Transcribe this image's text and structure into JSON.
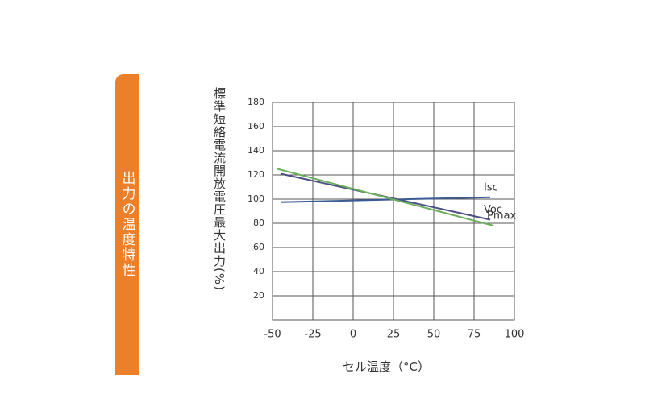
{
  "side_label": "出力の温度特性",
  "chart_data": {
    "type": "line",
    "y_label": "標準短絡電流開放電圧最大出力(%)",
    "x_label": "セル温度（°C）",
    "xlim": [
      -50,
      100
    ],
    "xticks": [
      -50,
      -25,
      0,
      25,
      50,
      75,
      100
    ],
    "ylim": [
      0,
      180
    ],
    "yticks": [
      20,
      40,
      60,
      80,
      100,
      120,
      140,
      160,
      180
    ],
    "grid": true,
    "series": [
      {
        "name": "Isc",
        "color": "#3b5b94",
        "x": [
          -45,
          85
        ],
        "values": [
          97.5,
          101.5
        ]
      },
      {
        "name": "Voc",
        "color": "#4c4f82",
        "x": [
          -45,
          85
        ],
        "values": [
          121,
          83
        ]
      },
      {
        "name": "Pmax",
        "color": "#6bb05a",
        "x": [
          -47,
          87
        ],
        "values": [
          125,
          78
        ]
      }
    ]
  }
}
